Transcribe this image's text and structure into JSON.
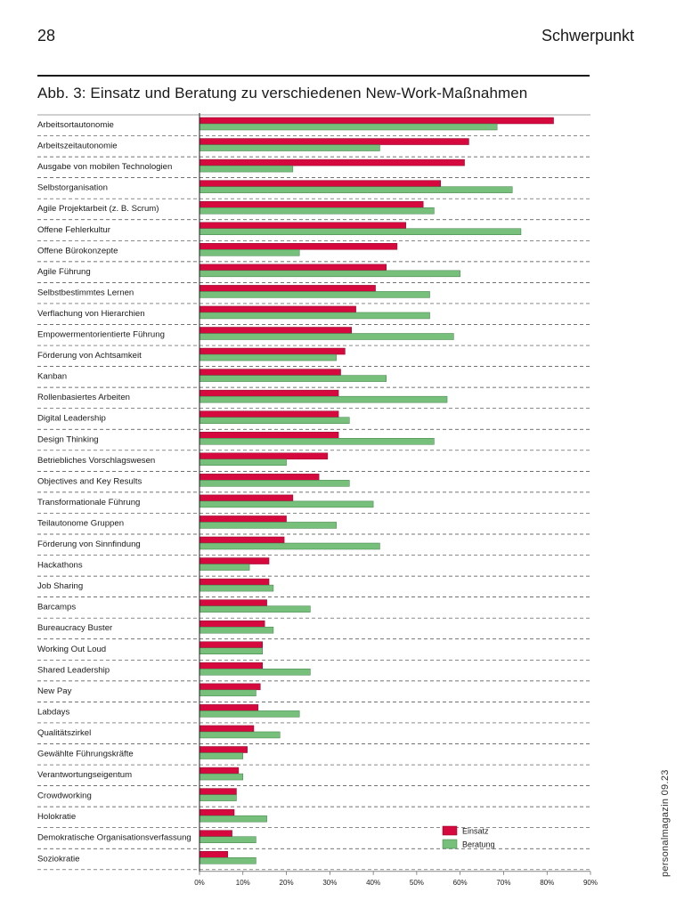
{
  "header": {
    "page_number": "28",
    "section": "Schwerpunkt"
  },
  "figure_title": "Abb. 3: Einsatz und Beratung zu verschiedenen New-Work-Maßnahmen",
  "side_label": "personalmagazin  09.23",
  "colors": {
    "einsatz": "#d6093f",
    "beratung": "#76c07c"
  },
  "chart_data": {
    "type": "bar",
    "orientation": "horizontal",
    "title": "Abb. 3: Einsatz und Beratung zu verschiedenen New-Work-Maßnahmen",
    "xlabel": "",
    "ylabel": "",
    "xlim": [
      0,
      90
    ],
    "ticks": [
      0,
      10,
      20,
      30,
      40,
      50,
      60,
      70,
      80,
      90
    ],
    "tick_labels": [
      "0%",
      "10%",
      "20%",
      "30%",
      "40%",
      "50%",
      "60%",
      "70%",
      "80%",
      "90%"
    ],
    "legend_position": "bottom-right",
    "categories": [
      "Arbeitsortautonomie",
      "Arbeitszeitautonomie",
      "Ausgabe von mobilen Technologien",
      "Selbstorganisation",
      "Agile Projektarbeit (z. B. Scrum)",
      "Offene Fehlerkultur",
      "Offene Bürokonzepte",
      "Agile Führung",
      "Selbstbestimmtes Lernen",
      "Verflachung von Hierarchien",
      "Empowermentorientierte Führung",
      "Förderung von Achtsamkeit",
      "Kanban",
      "Rollenbasiertes Arbeiten",
      "Digital Leadership",
      "Design Thinking",
      "Betriebliches Vorschlagswesen",
      "Objectives and Key Results",
      "Transformationale Führung",
      "Teilautonome Gruppen",
      "Förderung von Sinnfindung",
      "Hackathons",
      "Job Sharing",
      "Barcamps",
      "Bureaucracy Buster",
      "Working Out Loud",
      "Shared Leadership",
      "New Pay",
      "Labdays",
      "Qualitätszirkel",
      "Gewählte Führungskräfte",
      "Verantwortungseigentum",
      "Crowdworking",
      "Holokratie",
      "Demokratische Organisationsverfassung",
      "Soziokratie"
    ],
    "series": [
      {
        "name": "Einsatz",
        "values": [
          81.5,
          62,
          61,
          55.5,
          51.5,
          47.5,
          45.5,
          43,
          40.5,
          36,
          35,
          33.5,
          32.5,
          32,
          32,
          32,
          29.5,
          27.5,
          21.5,
          20,
          19.5,
          16,
          16,
          15.5,
          15,
          14.5,
          14.5,
          14,
          13.5,
          12.5,
          11,
          9,
          8.5,
          8,
          7.5,
          6.5
        ]
      },
      {
        "name": "Beratung",
        "values": [
          68.5,
          41.5,
          21.5,
          72,
          54,
          74,
          23,
          60,
          53,
          53,
          58.5,
          31.5,
          43,
          57,
          34.5,
          54,
          20,
          34.5,
          40,
          31.5,
          41.5,
          11.5,
          17,
          25.5,
          17,
          14.5,
          25.5,
          13,
          23,
          18.5,
          10,
          10,
          8.5,
          15.5,
          13,
          13
        ]
      }
    ]
  }
}
